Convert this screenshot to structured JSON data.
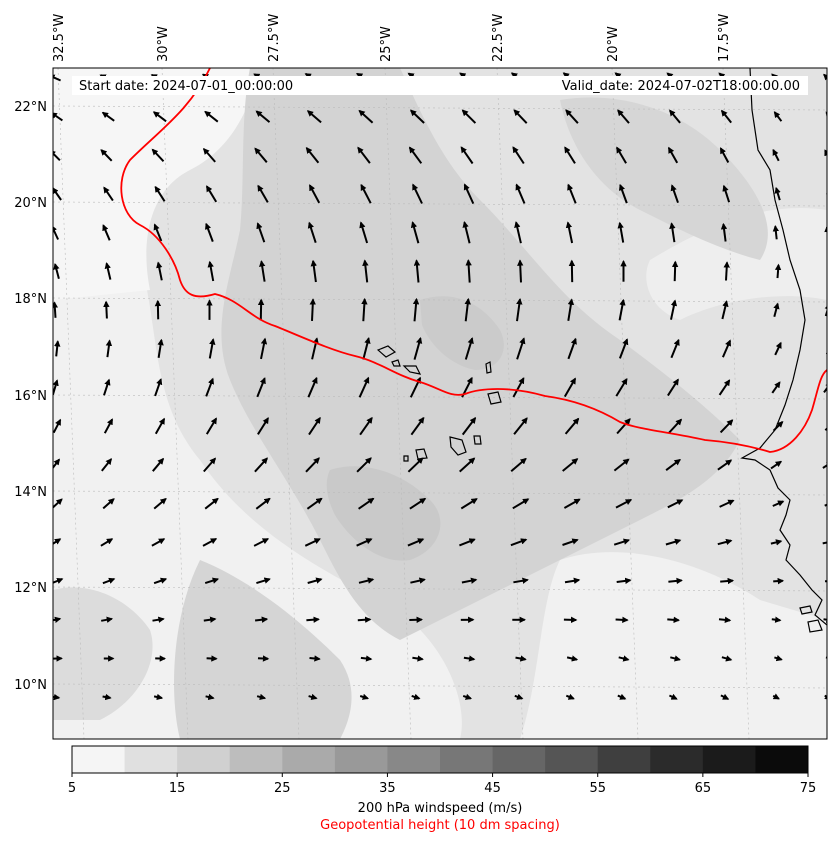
{
  "info": {
    "start_date": "Start date: 2024-07-01_00:00:00",
    "valid_date": "Valid_date: 2024-07-02T18:00:00.00"
  },
  "axes": {
    "lon_labels": [
      "32.5°W",
      "30°W",
      "27.5°W",
      "25°W",
      "22.5°W",
      "20°W",
      "17.5°W"
    ],
    "lat_labels": [
      "22°N",
      "20°N",
      "18°N",
      "16°N",
      "14°N",
      "12°N",
      "10°N"
    ]
  },
  "colorbar": {
    "tick_labels": [
      "5",
      "15",
      "25",
      "35",
      "45",
      "55",
      "65",
      "75"
    ],
    "levels": [
      5,
      10,
      15,
      20,
      25,
      30,
      35,
      40,
      45,
      50,
      55,
      60,
      65,
      70,
      75
    ],
    "colors": [
      "#f5f5f5",
      "#e0e0e0",
      "#d0d0d0",
      "#bdbdbd",
      "#aaaaaa",
      "#999999",
      "#888888",
      "#777777",
      "#666666",
      "#555555",
      "#3f3f3f",
      "#2b2b2b",
      "#1b1b1b",
      "#0b0b0b"
    ],
    "label": "200 hPa windspeed (m/s)",
    "contour_label": "Geopotential height (10 dm spacing)",
    "contour_color": "#ff0000"
  }
}
